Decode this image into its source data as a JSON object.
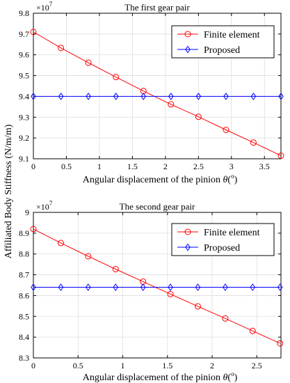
{
  "shared_ylabel": "Affiliated Body Stiffness (N/m/m)",
  "colors": {
    "fe": "#ff0000",
    "proposed": "#0000ff",
    "grid": "#dddddd"
  },
  "chart_data": [
    {
      "type": "line",
      "title": "The first gear pair",
      "xlabel": "Angular displacement of the pinion θ(°)",
      "xlabel_main": "Angular displacement of the pinion ",
      "xlabel_theta": "θ",
      "xlabel_open": "(",
      "xlabel_deg": "o",
      "xlabel_close": ")",
      "y_multiplier_base": "×10",
      "y_multiplier_exp": "7",
      "xlim": [
        0,
        3.75
      ],
      "ylim": [
        9.1,
        9.8
      ],
      "grid": true,
      "legend_position": "top-right",
      "xticks": [
        0,
        0.5,
        1,
        1.5,
        2,
        2.5,
        3,
        3.5
      ],
      "xtick_labels": [
        "0",
        "0.5",
        "1",
        "1.5",
        "2",
        "2.5",
        "3",
        "3.5"
      ],
      "yticks": [
        9.1,
        9.2,
        9.3,
        9.4,
        9.5,
        9.6,
        9.7,
        9.8
      ],
      "ytick_labels": [
        "9.1",
        "9.2",
        "9.3",
        "9.4",
        "9.5",
        "9.6",
        "9.7",
        "9.8"
      ],
      "series": [
        {
          "name": "Finite element",
          "marker": "circle",
          "x": [
            0,
            0.417,
            0.833,
            1.25,
            1.667,
            2.083,
            2.5,
            2.917,
            3.333,
            3.75
          ],
          "y": [
            9.71,
            9.633,
            9.562,
            9.493,
            9.426,
            9.362,
            9.302,
            9.239,
            9.178,
            9.115
          ]
        },
        {
          "name": "Proposed",
          "marker": "diamond",
          "x": [
            0,
            0.417,
            0.833,
            1.25,
            1.667,
            2.083,
            2.5,
            2.917,
            3.333,
            3.75
          ],
          "y": [
            9.4,
            9.4,
            9.4,
            9.4,
            9.4,
            9.4,
            9.4,
            9.4,
            9.4,
            9.4
          ]
        }
      ]
    },
    {
      "type": "line",
      "title": "The second gear pair",
      "xlabel": "Angular displacement of the pinion θ(°)",
      "xlabel_main": "Angular displacement of the pinion ",
      "xlabel_theta": "θ",
      "xlabel_open": "(",
      "xlabel_deg": "o",
      "xlabel_close": ")",
      "y_multiplier_base": "×10",
      "y_multiplier_exp": "7",
      "xlim": [
        0,
        2.77
      ],
      "ylim": [
        8.3,
        9.0
      ],
      "grid": true,
      "legend_position": "top-right",
      "xticks": [
        0,
        0.5,
        1,
        1.5,
        2,
        2.5
      ],
      "xtick_labels": [
        "0",
        "0.5",
        "1",
        "1.5",
        "2",
        "2.5"
      ],
      "yticks": [
        8.3,
        8.4,
        8.5,
        8.6,
        8.7,
        8.8,
        8.9,
        9.0
      ],
      "ytick_labels": [
        "8.3",
        "8.4",
        "8.5",
        "8.6",
        "8.7",
        "8.8",
        "8.9",
        "9"
      ],
      "series": [
        {
          "name": "Finite element",
          "marker": "circle",
          "x": [
            0,
            0.307,
            0.613,
            0.92,
            1.227,
            1.533,
            1.84,
            2.147,
            2.453,
            2.76
          ],
          "y": [
            8.92,
            8.853,
            8.789,
            8.727,
            8.667,
            8.607,
            8.548,
            8.49,
            8.43,
            8.37
          ]
        },
        {
          "name": "Proposed",
          "marker": "diamond",
          "x": [
            0,
            0.307,
            0.613,
            0.92,
            1.227,
            1.533,
            1.84,
            2.147,
            2.453,
            2.76
          ],
          "y": [
            8.64,
            8.64,
            8.64,
            8.64,
            8.64,
            8.64,
            8.64,
            8.64,
            8.64,
            8.64
          ]
        }
      ]
    }
  ]
}
